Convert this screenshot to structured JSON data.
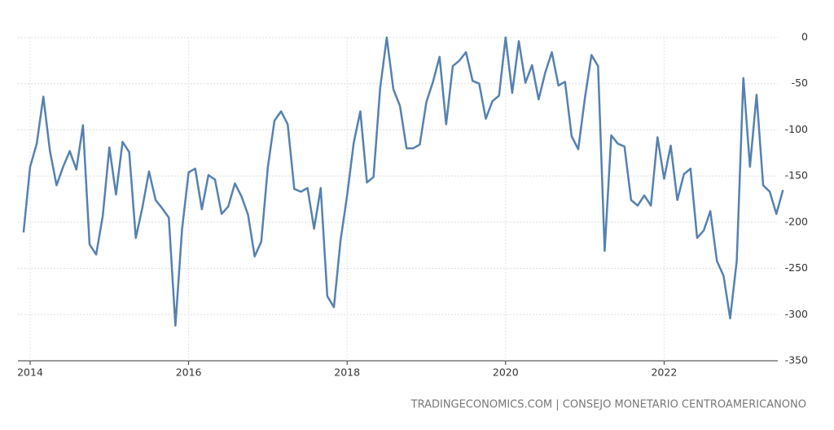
{
  "chart_data": {
    "type": "line",
    "source": "TRADINGECONOMICS.COM | CONSEJO MONETARIO CENTROAMERICANONO",
    "categories": [
      null,
      "2014",
      null,
      null,
      null,
      null,
      null,
      null,
      null,
      null,
      null,
      null,
      null,
      null,
      null,
      null,
      null,
      null,
      null,
      null,
      null,
      null,
      null,
      null,
      null,
      "2016",
      null,
      null,
      null,
      null,
      null,
      null,
      null,
      null,
      null,
      null,
      null,
      null,
      null,
      null,
      null,
      null,
      null,
      null,
      null,
      null,
      null,
      null,
      null,
      "2018",
      null,
      null,
      null,
      null,
      null,
      null,
      null,
      null,
      null,
      null,
      null,
      null,
      null,
      null,
      null,
      null,
      null,
      null,
      null,
      null,
      null,
      null,
      null,
      "2020",
      null,
      null,
      null,
      null,
      null,
      null,
      null,
      null,
      null,
      null,
      null,
      null,
      null,
      null,
      null,
      null,
      null,
      null,
      null,
      null,
      null,
      null,
      null,
      "2022",
      null,
      null,
      null,
      null,
      null,
      null,
      null,
      null,
      null,
      null,
      null,
      null,
      null,
      null,
      null,
      null,
      null,
      null
    ],
    "values": [
      -211,
      -140,
      -115,
      -64,
      -123,
      -160,
      -140,
      -123,
      -143,
      -95,
      -224,
      -235,
      -193,
      -119,
      -170,
      -113,
      -124,
      -217,
      -184,
      -145,
      -176,
      -185,
      -195,
      -312,
      -208,
      -146,
      -142,
      -186,
      -149,
      -154,
      -191,
      -183,
      -158,
      -172,
      -192,
      -237,
      -221,
      -140,
      -90,
      -80,
      -94,
      -164,
      -167,
      -163,
      -207,
      -163,
      -280,
      -292,
      -220,
      -171,
      -114,
      -80,
      -157,
      -151,
      -55,
      0,
      -56,
      -74,
      -120,
      -120,
      -116,
      -70,
      -48,
      -21,
      -94,
      -31,
      -25,
      -16,
      -47,
      -50,
      -88,
      -69,
      -63,
      0,
      -60,
      -4,
      -49,
      -30,
      -67,
      -38,
      -16,
      -52,
      -48,
      -107,
      -121,
      -66,
      -19,
      -31,
      -231,
      -106,
      -115,
      -118,
      -176,
      -182,
      -171,
      -182,
      -108,
      -153,
      -117,
      -176,
      -148,
      -142,
      -217,
      -209,
      -188,
      -242,
      -258,
      -304,
      -242,
      -44,
      -140,
      -62,
      -160,
      -167,
      -191,
      -165
    ],
    "color": "#5581b0",
    "ylim": [
      -350,
      0
    ],
    "yticks": [
      0,
      -50,
      -100,
      -150,
      -200,
      -250,
      -300,
      -350
    ],
    "grid": true
  }
}
